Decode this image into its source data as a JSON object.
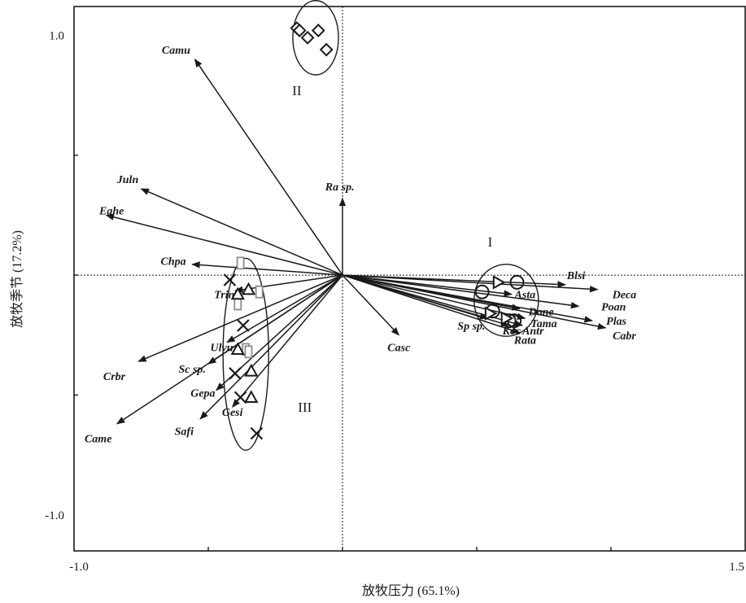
{
  "chart_data": {
    "type": "scatter",
    "title": "",
    "xlabel": "放牧压力 (65.1%)",
    "ylabel": "放牧季节 (17.2%)",
    "xlim": [
      -1.0,
      1.5
    ],
    "ylim": [
      -1.15,
      1.12
    ],
    "x_tick_labels": [
      {
        "value": -1.0,
        "label": "-1.0"
      },
      {
        "value": 1.5,
        "label": "1.5"
      }
    ],
    "y_tick_labels": [
      {
        "value": 1.0,
        "label": "1.0"
      },
      {
        "value": -1.0,
        "label": "-1.0"
      }
    ],
    "minor_x_ticks": [
      -0.5,
      0.0,
      0.5,
      1.0
    ],
    "minor_y_ticks": [
      0.5,
      0.0,
      -0.5
    ],
    "reference_lines": {
      "x": 0.0,
      "y": 0.0,
      "style": "dotted"
    },
    "species_vectors": [
      {
        "label": "Camu",
        "x": -0.55,
        "y": 0.9,
        "label_x": -0.62,
        "label_y": 0.94
      },
      {
        "label": "Juln",
        "x": -0.75,
        "y": 0.36,
        "label_x": -0.8,
        "label_y": 0.4
      },
      {
        "label": "Eahe",
        "x": -0.88,
        "y": 0.25,
        "label_x": -0.86,
        "label_y": 0.27
      },
      {
        "label": "Chpa",
        "x": -0.56,
        "y": 0.045,
        "label_x": -0.63,
        "label_y": 0.06
      },
      {
        "label": "Trin",
        "x": -0.4,
        "y": -0.065,
        "label_x": -0.44,
        "label_y": -0.08
      },
      {
        "label": "Ulvu",
        "x": -0.43,
        "y": -0.28,
        "label_x": -0.45,
        "label_y": -0.3
      },
      {
        "label": "Sc sp.",
        "x": -0.5,
        "y": -0.37,
        "label_x": -0.56,
        "label_y": -0.39
      },
      {
        "label": "Crbr",
        "x": -0.76,
        "y": -0.36,
        "label_x": -0.85,
        "label_y": -0.42
      },
      {
        "label": "Gepa",
        "x": -0.47,
        "y": -0.48,
        "label_x": -0.52,
        "label_y": -0.49
      },
      {
        "label": "Gesi",
        "x": -0.41,
        "y": -0.55,
        "label_x": -0.41,
        "label_y": -0.57
      },
      {
        "label": "Safi",
        "x": -0.53,
        "y": -0.6,
        "label_x": -0.59,
        "label_y": -0.65
      },
      {
        "label": "Came",
        "x": -0.84,
        "y": -0.62,
        "label_x": -0.91,
        "label_y": -0.68
      },
      {
        "label": "Ra sp.",
        "x": 0.0,
        "y": 0.32,
        "label_x": -0.01,
        "label_y": 0.37
      },
      {
        "label": "Casc",
        "x": 0.21,
        "y": -0.25,
        "label_x": 0.21,
        "label_y": -0.3
      },
      {
        "label": "Blsi",
        "x": 0.83,
        "y": -0.04,
        "label_x": 0.87,
        "label_y": 0.0
      },
      {
        "label": "Deca",
        "x": 0.95,
        "y": -0.06,
        "label_x": 1.05,
        "label_y": -0.08
      },
      {
        "label": "Poan",
        "x": 0.88,
        "y": -0.13,
        "label_x": 1.01,
        "label_y": -0.13
      },
      {
        "label": "Plas",
        "x": 0.93,
        "y": -0.19,
        "label_x": 1.02,
        "label_y": -0.19
      },
      {
        "label": "Cabr",
        "x": 0.98,
        "y": -0.22,
        "label_x": 1.05,
        "label_y": -0.25
      },
      {
        "label": "Asta",
        "x": 0.63,
        "y": -0.08,
        "label_x": 0.68,
        "label_y": -0.08
      },
      {
        "label": "Dane",
        "x": 0.66,
        "y": -0.14,
        "label_x": 0.74,
        "label_y": -0.15
      },
      {
        "label": "Tama",
        "x": 0.68,
        "y": -0.18,
        "label_x": 0.75,
        "label_y": -0.2
      },
      {
        "label": "Antr",
        "x": 0.67,
        "y": -0.21,
        "label_x": 0.71,
        "label_y": -0.23
      },
      {
        "label": "Koc",
        "x": 0.62,
        "y": -0.21,
        "label_x": 0.63,
        "label_y": -0.23
      },
      {
        "label": "Rata",
        "x": 0.66,
        "y": -0.24,
        "label_x": 0.68,
        "label_y": -0.27
      },
      {
        "label": "Sp sp.",
        "x": 0.54,
        "y": -0.18,
        "label_x": 0.48,
        "label_y": -0.21
      }
    ],
    "sample_points": [
      {
        "marker": "diamond",
        "x": -0.17,
        "y": 1.03
      },
      {
        "marker": "diamond",
        "x": -0.16,
        "y": 1.02
      },
      {
        "marker": "diamond",
        "x": -0.13,
        "y": 0.99
      },
      {
        "marker": "diamond",
        "x": -0.09,
        "y": 1.02
      },
      {
        "marker": "diamond",
        "x": -0.06,
        "y": 0.94
      },
      {
        "marker": "square",
        "x": -0.38,
        "y": 0.05
      },
      {
        "marker": "square",
        "x": -0.31,
        "y": -0.07
      },
      {
        "marker": "square",
        "x": -0.39,
        "y": -0.12
      },
      {
        "marker": "square",
        "x": -0.36,
        "y": -0.31
      },
      {
        "marker": "square",
        "x": -0.35,
        "y": -0.32
      },
      {
        "marker": "triangle",
        "x": -0.35,
        "y": -0.06
      },
      {
        "marker": "triangle",
        "x": -0.39,
        "y": -0.08
      },
      {
        "marker": "triangle",
        "x": -0.39,
        "y": -0.31
      },
      {
        "marker": "triangle",
        "x": -0.34,
        "y": -0.4
      },
      {
        "marker": "triangle",
        "x": -0.34,
        "y": -0.51
      },
      {
        "marker": "cross",
        "x": -0.42,
        "y": -0.02
      },
      {
        "marker": "cross",
        "x": -0.37,
        "y": -0.21
      },
      {
        "marker": "cross",
        "x": -0.4,
        "y": -0.41
      },
      {
        "marker": "cross",
        "x": -0.38,
        "y": -0.51
      },
      {
        "marker": "cross",
        "x": -0.32,
        "y": -0.66
      },
      {
        "marker": "circle",
        "x": 0.52,
        "y": -0.07
      },
      {
        "marker": "circle",
        "x": 0.65,
        "y": -0.03
      },
      {
        "marker": "circle",
        "x": 0.56,
        "y": -0.15
      },
      {
        "marker": "circle",
        "x": 0.64,
        "y": -0.19
      },
      {
        "marker": "circle",
        "x": 0.62,
        "y": -0.19
      },
      {
        "marker": "triangle-right",
        "x": 0.58,
        "y": -0.03
      },
      {
        "marker": "triangle-right",
        "x": 0.55,
        "y": -0.16
      },
      {
        "marker": "triangle-right",
        "x": 0.61,
        "y": -0.18
      }
    ],
    "group_ellipses": [
      {
        "label": "II",
        "cx": -0.1,
        "cy": 0.99,
        "rx": 0.085,
        "ry": 0.155,
        "label_x": -0.17,
        "label_y": 0.77
      },
      {
        "label": "I",
        "cx": 0.61,
        "cy": -0.105,
        "rx": 0.12,
        "ry": 0.15,
        "label_x": 0.55,
        "label_y": 0.14
      },
      {
        "label": "III",
        "cx": -0.36,
        "cy": -0.33,
        "rx": 0.085,
        "ry": 0.4,
        "label_x": -0.14,
        "label_y": -0.55
      }
    ]
  }
}
